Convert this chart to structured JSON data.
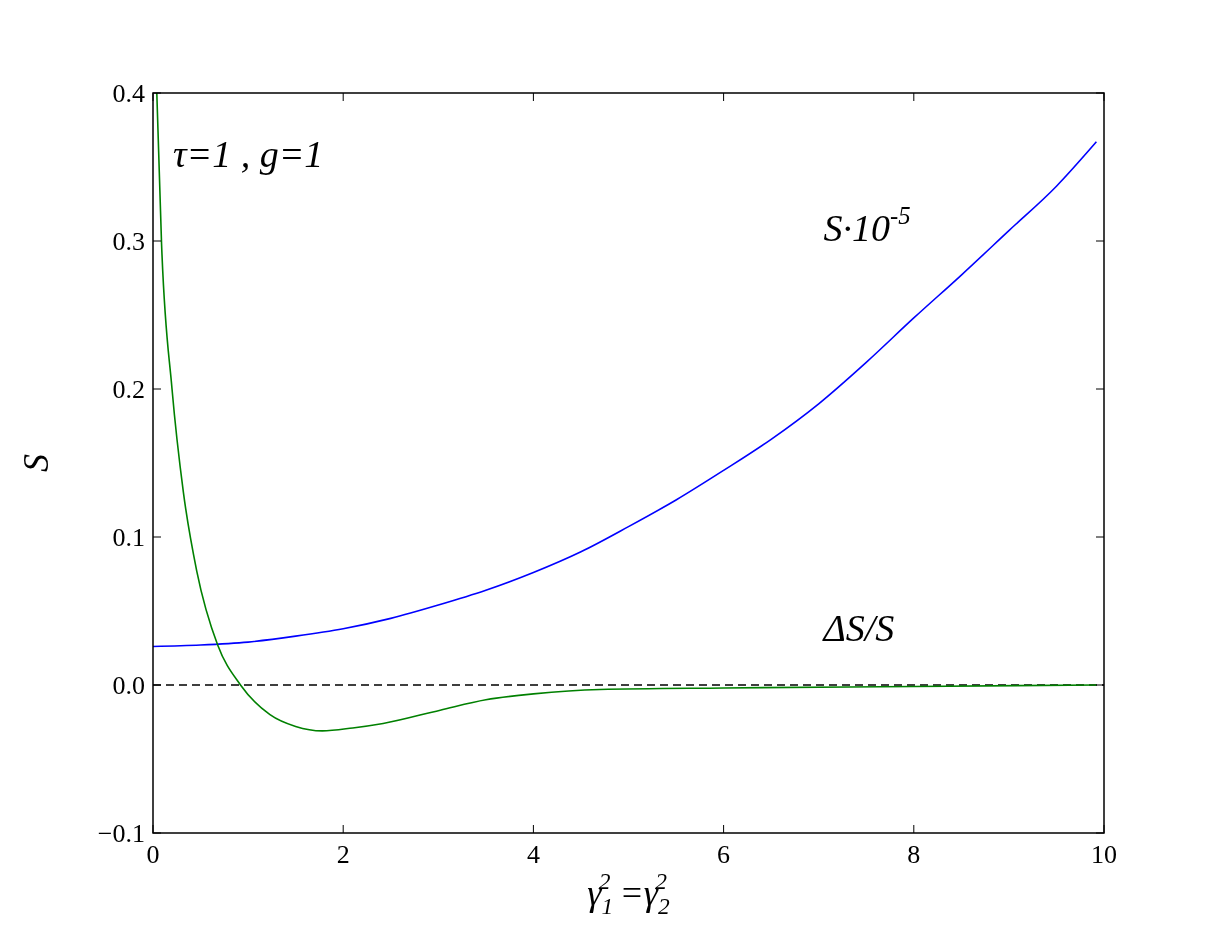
{
  "chart_data": {
    "type": "line",
    "xlabel": "γ$_{1}$$^{2}$ =γ$_{2}$$^{2}$",
    "ylabel": "S",
    "annotations": [
      "τ=1 , g=1"
    ],
    "series": [
      {
        "name": "S·10$^{-5}$",
        "color": "#0000ff",
        "x": [
          0,
          0.5,
          1,
          1.5,
          2,
          2.5,
          3,
          3.5,
          4,
          4.5,
          5,
          5.5,
          6,
          6.5,
          7,
          7.5,
          8,
          8.5,
          9,
          9.5,
          9.92
        ],
        "values": [
          0.026,
          0.027,
          0.029,
          0.033,
          0.038,
          0.045,
          0.054,
          0.064,
          0.076,
          0.09,
          0.107,
          0.125,
          0.145,
          0.166,
          0.19,
          0.218,
          0.248,
          0.277,
          0.307,
          0.337,
          0.367
        ]
      },
      {
        "name": "ΔS/S",
        "color": "#008000",
        "x": [
          0.04,
          0.09,
          0.2,
          0.32,
          0.46,
          0.68,
          0.92,
          1.23,
          1.5,
          1.78,
          2.1,
          2.42,
          3.02,
          3.5,
          4,
          4.7,
          6,
          8,
          9.92
        ],
        "values": [
          0.4,
          0.298,
          0.2,
          0.13,
          0.077,
          0.027,
          0,
          -0.02,
          -0.028,
          -0.031,
          -0.029,
          -0.026,
          -0.017,
          -0.01,
          -0.006,
          -0.003,
          -0.002,
          -0.001,
          0
        ]
      }
    ],
    "xlim": [
      0,
      10
    ],
    "ylim": [
      -0.1,
      0.4
    ],
    "xticks": [
      0,
      2,
      4,
      6,
      8,
      10
    ],
    "yticks": [
      {
        "value": -0.1,
        "label": "−0.1"
      },
      {
        "value": 0,
        "label": "0.0"
      },
      {
        "value": 0.1,
        "label": "0.1"
      },
      {
        "value": 0.2,
        "label": "0.2"
      },
      {
        "value": 0.3,
        "label": "0.3"
      },
      {
        "value": 0.4,
        "label": "0.4"
      }
    ],
    "ref_lines": [
      {
        "axis": "y",
        "value": 0,
        "color": "#000000",
        "line_style": "dashed"
      }
    ],
    "grid": false
  }
}
